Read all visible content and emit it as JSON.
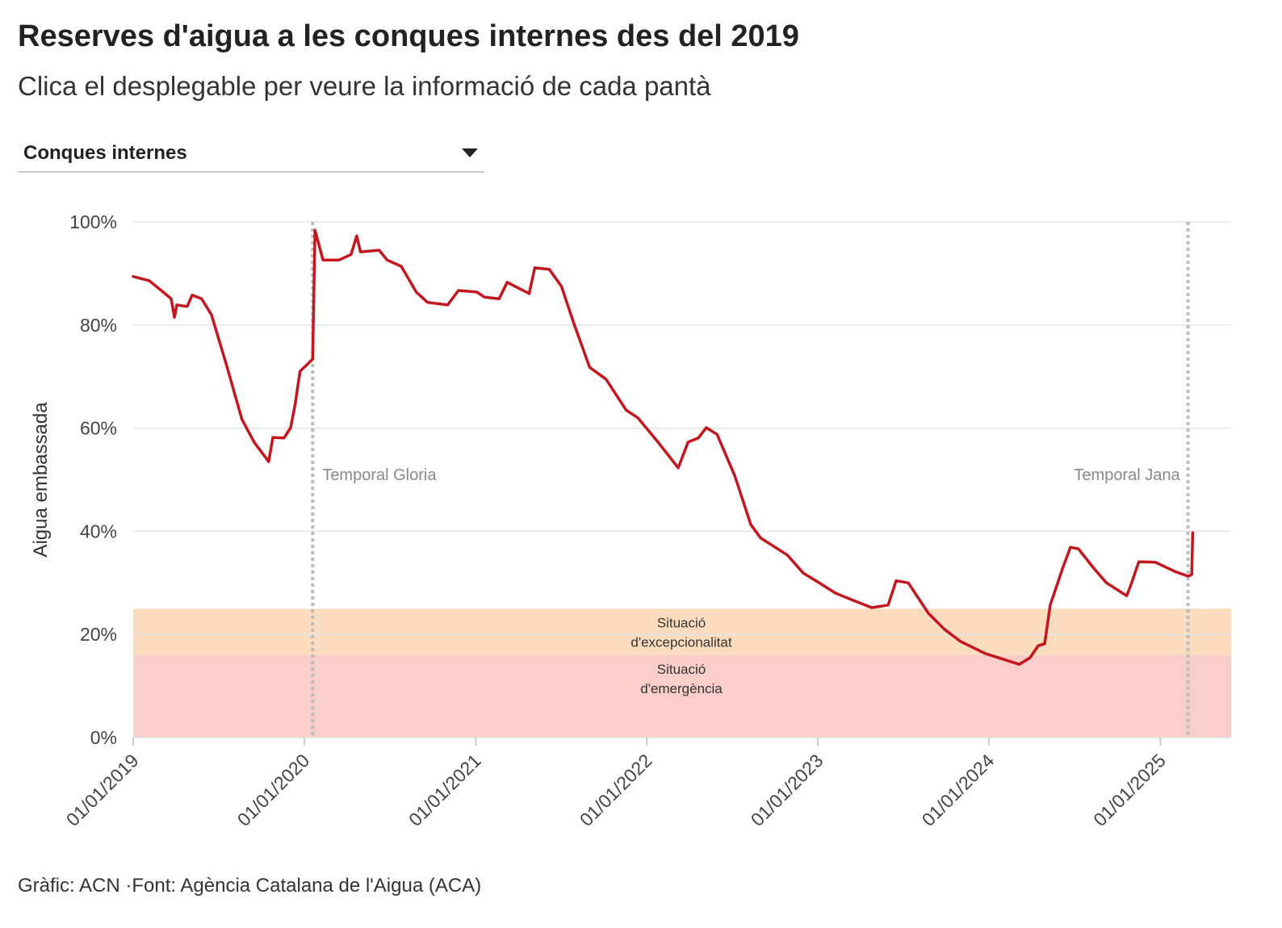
{
  "chart_data": {
    "type": "line",
    "title": "Reserves d'aigua a les conques internes des del 2019",
    "subtitle": "Clica el desplegable per veure la informació de cada pantà",
    "dropdown": {
      "selected": "Conques internes"
    },
    "source": "Gràfic: ACN ·Font: Agència Catalana de l'Aigua (ACA)",
    "y_label": "Aigua embassada",
    "color": "#c4161c",
    "x": [
      "2019-01-01",
      "2019-02-04",
      "2019-03-02",
      "2019-03-23",
      "2019-03-30",
      "2019-04-04",
      "2019-04-26",
      "2019-05-07",
      "2019-05-27",
      "2019-06-17",
      "2019-07-18",
      "2019-08-21",
      "2019-09-16",
      "2019-10-17",
      "2019-10-26",
      "2019-11-19",
      "2019-12-03",
      "2019-12-13",
      "2019-12-23",
      "2020-01-19",
      "2020-01-24",
      "2020-02-10",
      "2020-03-15",
      "2020-04-10",
      "2020-04-22",
      "2020-04-30",
      "2020-06-09",
      "2020-06-26",
      "2020-07-26",
      "2020-08-27",
      "2020-09-20",
      "2020-11-02",
      "2020-11-25",
      "2021-01-03",
      "2021-01-20",
      "2021-02-20",
      "2021-03-09",
      "2021-04-25",
      "2021-05-07",
      "2021-06-07",
      "2021-07-03",
      "2021-07-29",
      "2021-09-01",
      "2021-10-06",
      "2021-11-18",
      "2021-12-13",
      "2022-01-25",
      "2022-03-09",
      "2022-03-30",
      "2022-04-21",
      "2022-05-08",
      "2022-05-31",
      "2022-07-08",
      "2022-08-11",
      "2022-09-01",
      "2022-10-02",
      "2022-10-28",
      "2022-12-01",
      "2023-01-04",
      "2023-02-08",
      "2023-03-23",
      "2023-04-26",
      "2023-05-31",
      "2023-06-17",
      "2023-07-13",
      "2023-08-25",
      "2023-09-28",
      "2023-11-02",
      "2023-12-24",
      "2024-03-06",
      "2024-03-29",
      "2024-04-15",
      "2024-04-29",
      "2024-05-11",
      "2024-06-06",
      "2024-06-23",
      "2024-07-10",
      "2024-08-13",
      "2024-09-08",
      "2024-10-21",
      "2024-10-30",
      "2024-11-16",
      "2024-12-21",
      "2025-02-01",
      "2025-03-01",
      "2025-03-09",
      "2025-03-11"
    ],
    "values": [
      89.4,
      88.6,
      86.7,
      85.1,
      81.5,
      83.9,
      83.6,
      85.8,
      85.1,
      82.0,
      72.6,
      61.7,
      57.3,
      53.5,
      58.2,
      58.1,
      60.1,
      64.8,
      71.0,
      73.4,
      98.4,
      92.6,
      92.6,
      93.7,
      97.3,
      94.2,
      94.5,
      92.6,
      91.4,
      86.4,
      84.4,
      83.9,
      86.7,
      86.4,
      85.4,
      85.1,
      88.3,
      86.1,
      91.1,
      90.8,
      87.5,
      80.4,
      71.8,
      69.5,
      63.5,
      62.0,
      57.3,
      52.3,
      57.3,
      58.1,
      60.1,
      58.8,
      50.7,
      41.3,
      38.7,
      36.9,
      35.4,
      31.9,
      30.0,
      28.0,
      26.4,
      25.2,
      25.7,
      30.4,
      30.0,
      24.1,
      21.0,
      18.6,
      16.3,
      14.2,
      15.5,
      17.8,
      18.2,
      25.7,
      32.7,
      36.9,
      36.6,
      32.7,
      30.0,
      27.5,
      29.6,
      34.1,
      34.0,
      32.2,
      31.3,
      31.6,
      39.7
    ],
    "xlim": [
      "2019-01-01",
      "2025-06-01"
    ],
    "xticks": [
      {
        "value": "2019-01-01",
        "label": "01/01/2019"
      },
      {
        "value": "2020-01-01",
        "label": "01/01/2020"
      },
      {
        "value": "2021-01-01",
        "label": "01/01/2021"
      },
      {
        "value": "2022-01-01",
        "label": "01/01/2022"
      },
      {
        "value": "2023-01-01",
        "label": "01/01/2023"
      },
      {
        "value": "2024-01-01",
        "label": "01/01/2024"
      },
      {
        "value": "2025-01-01",
        "label": "01/01/2025"
      }
    ],
    "ylim": [
      0,
      100
    ],
    "yticks": [
      {
        "value": 0,
        "label": "0%"
      },
      {
        "value": 20,
        "label": "20%"
      },
      {
        "value": 40,
        "label": "40%"
      },
      {
        "value": 60,
        "label": "60%"
      },
      {
        "value": 80,
        "label": "80%"
      },
      {
        "value": 100,
        "label": "100%"
      }
    ],
    "grid": true,
    "bands": [
      {
        "from": 16,
        "to": 25,
        "color": "#fbdcbf",
        "label": [
          "Situació",
          "d'excepcionalitat"
        ]
      },
      {
        "from": 0,
        "to": 16,
        "color": "#f9cdc9",
        "label": [
          "Situació",
          "d'emergència"
        ]
      }
    ],
    "annotations": [
      {
        "x": "2020-01-19",
        "label": "Temporal Gloria",
        "side": "right"
      },
      {
        "x": "2025-03-01",
        "label": "Temporal Jana",
        "side": "left"
      }
    ]
  }
}
